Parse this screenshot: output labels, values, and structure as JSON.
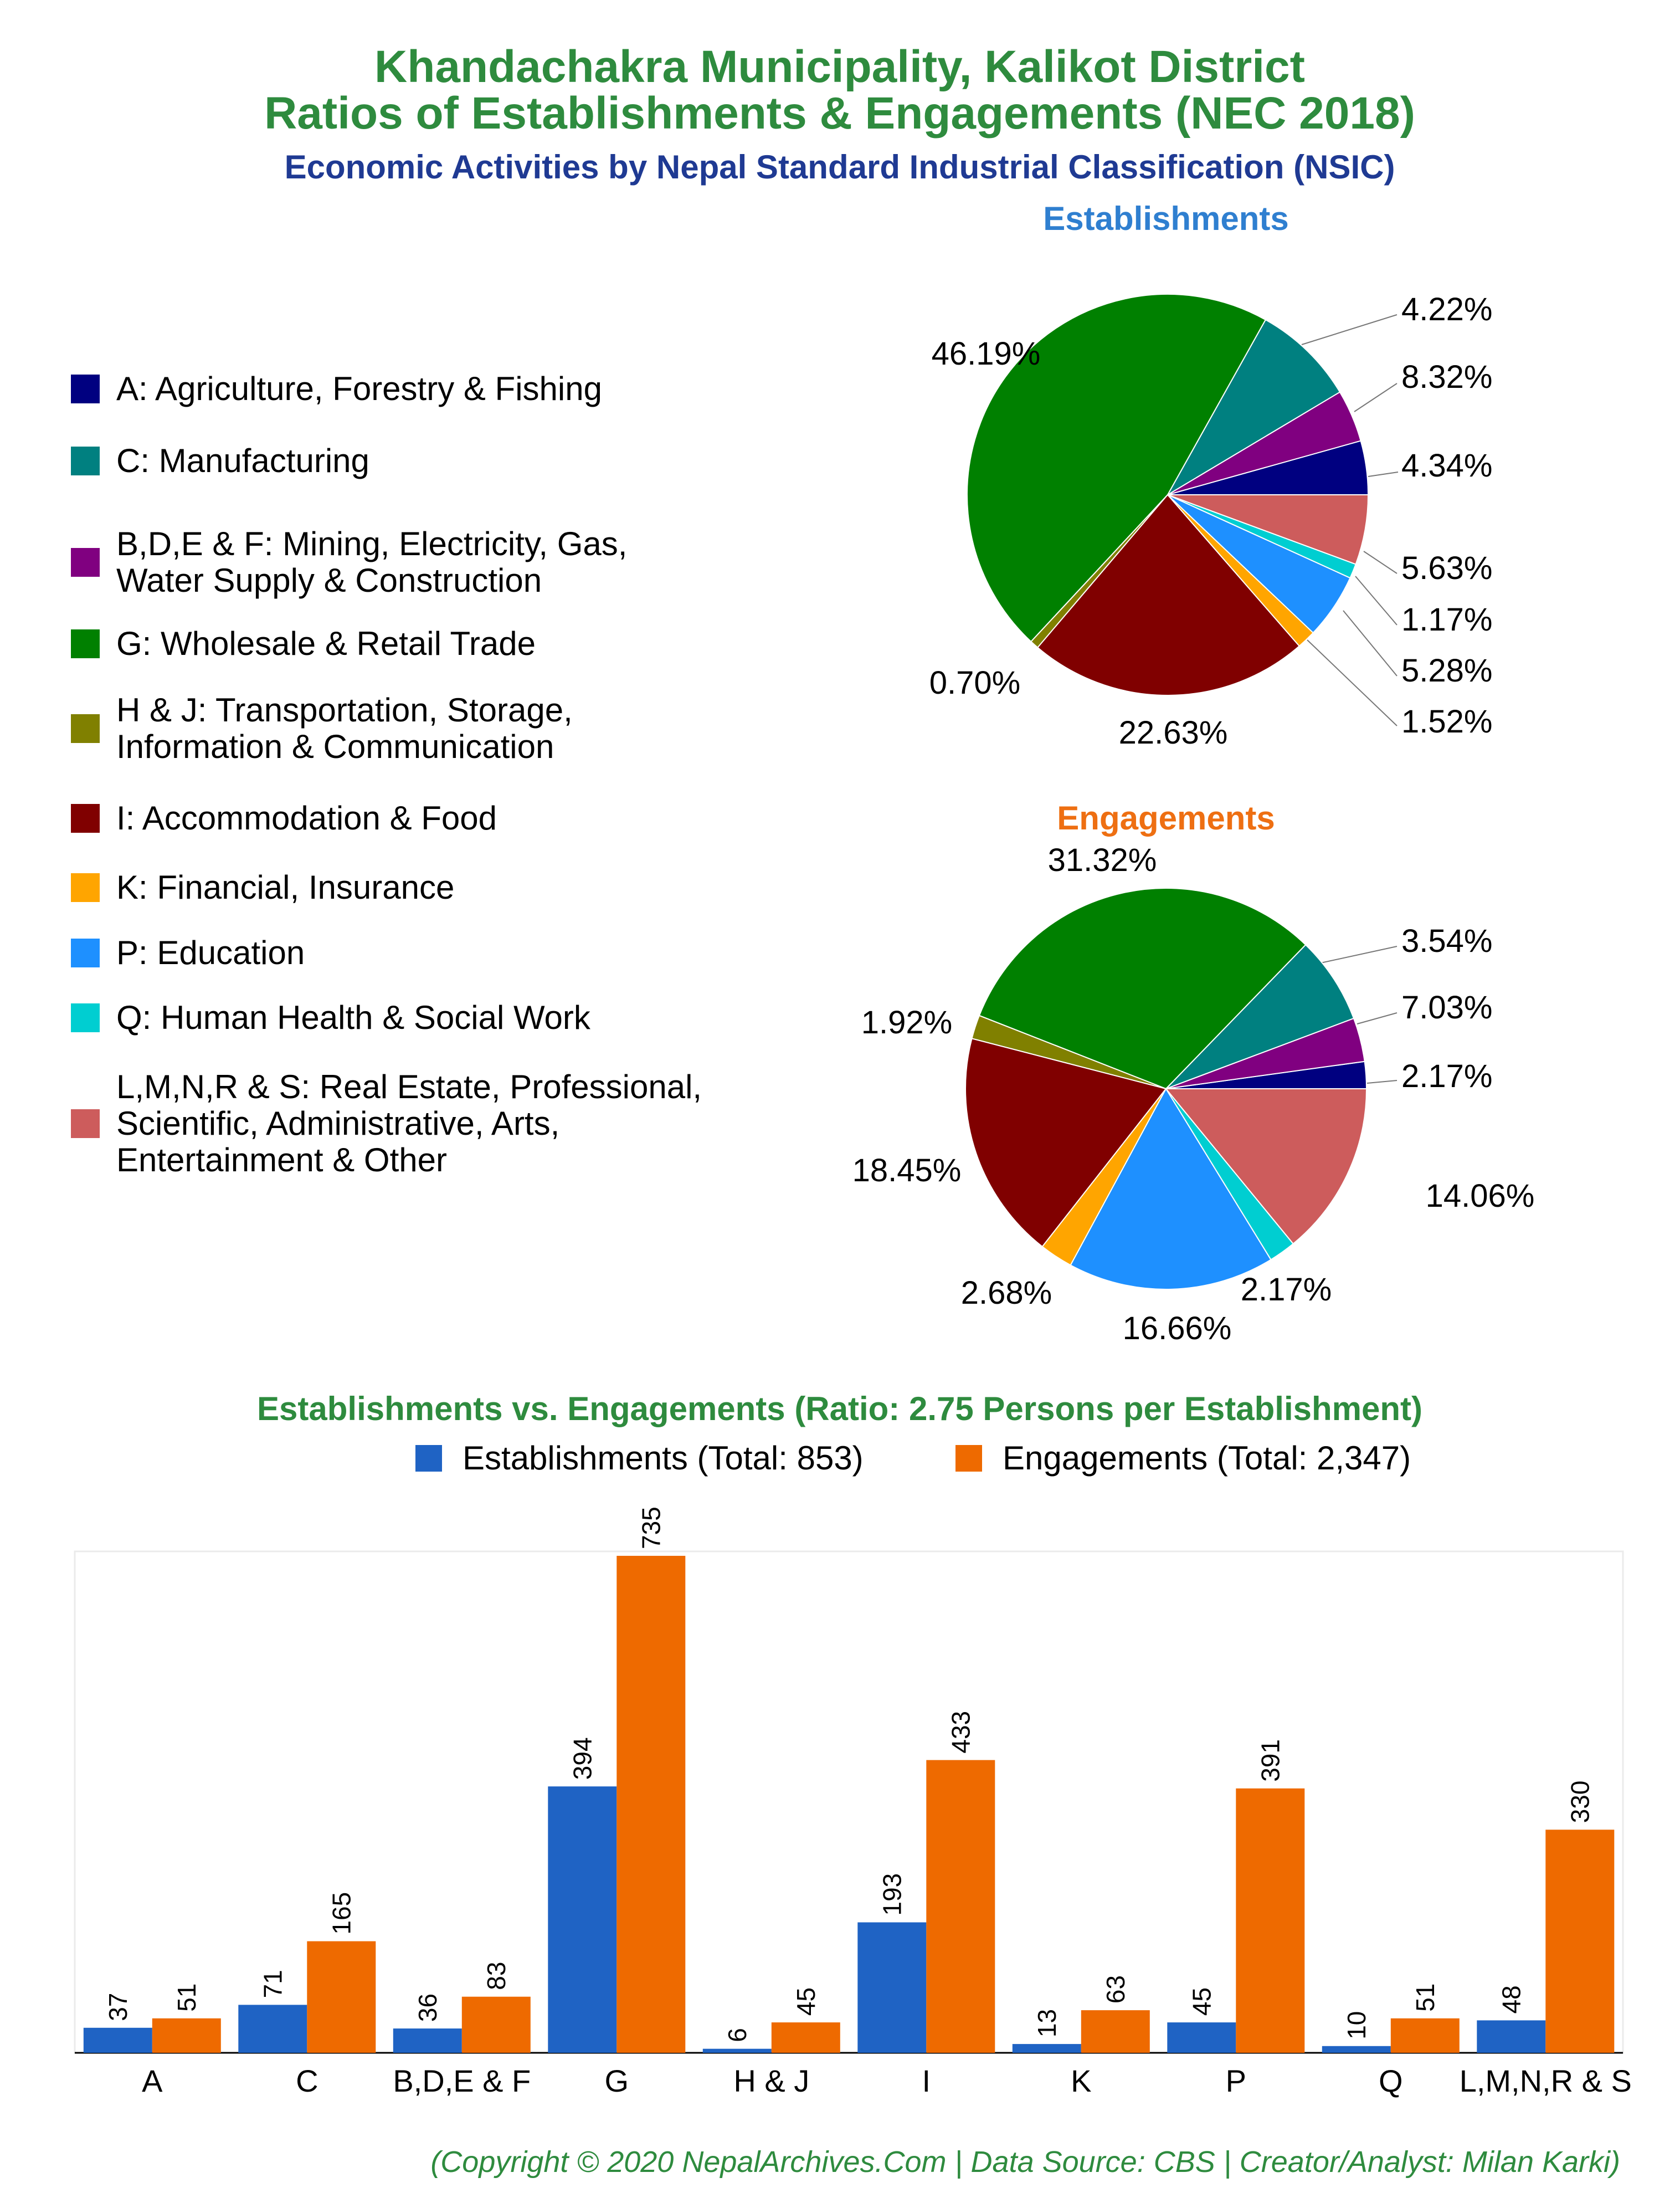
{
  "header": {
    "title_line1": "Khandachakra Municipality, Kalikot District",
    "title_line2": "Ratios of Establishments & Engagements (NEC 2018)",
    "subtitle": "Economic Activities by Nepal Standard Industrial Classification (NSIC)"
  },
  "colors": {
    "title_green": "#2e8b3e",
    "subtitle_blue": "#1f3a93",
    "establishments_title": "#2f7fd0",
    "engagements_title": "#ee6f12",
    "establishments_bar": "#1f63c4",
    "engagements_bar": "#ee6a00",
    "footer_green": "#2e8b3e"
  },
  "legend": {
    "items": [
      {
        "key": "A",
        "label_lines": [
          "A: Agriculture, Forestry & Fishing"
        ],
        "color": "#000080"
      },
      {
        "key": "C",
        "label_lines": [
          "C: Manufacturing"
        ],
        "color": "#008080"
      },
      {
        "key": "BDEF",
        "label_lines": [
          "B,D,E & F: Mining, Electricity, Gas,",
          "Water Supply & Construction"
        ],
        "color": "#800080"
      },
      {
        "key": "G",
        "label_lines": [
          "G: Wholesale & Retail Trade"
        ],
        "color": "#008000"
      },
      {
        "key": "HJ",
        "label_lines": [
          "H & J: Transportation, Storage,",
          "Information & Communication"
        ],
        "color": "#808000"
      },
      {
        "key": "I",
        "label_lines": [
          "I: Accommodation & Food"
        ],
        "color": "#800000"
      },
      {
        "key": "K",
        "label_lines": [
          "K: Financial, Insurance"
        ],
        "color": "#ffa500"
      },
      {
        "key": "P",
        "label_lines": [
          "P: Education"
        ],
        "color": "#1e90ff"
      },
      {
        "key": "Q",
        "label_lines": [
          "Q: Human Health & Social Work"
        ],
        "color": "#00ced1"
      },
      {
        "key": "LMNRS",
        "label_lines": [
          "L,M,N,R & S: Real Estate, Professional,",
          "Scientific, Administrative, Arts,",
          "Entertainment & Other"
        ],
        "color": "#cd5c5c"
      }
    ]
  },
  "chart_data": [
    {
      "type": "pie",
      "title": "Establishments",
      "slice_order": [
        "A",
        "BDEF",
        "C",
        "G",
        "HJ",
        "I",
        "K",
        "P",
        "Q",
        "LMNRS"
      ],
      "values": [
        37,
        36,
        71,
        394,
        6,
        193,
        13,
        45,
        10,
        48
      ],
      "labels": [
        "4.34%",
        "4.22%",
        "8.32%",
        "46.19%",
        "0.70%",
        "22.63%",
        "1.52%",
        "5.28%",
        "1.17%",
        "5.63%"
      ]
    },
    {
      "type": "pie",
      "title": "Engagements",
      "slice_order": [
        "A",
        "BDEF",
        "C",
        "G",
        "HJ",
        "I",
        "K",
        "P",
        "Q",
        "LMNRS"
      ],
      "values": [
        51,
        83,
        165,
        735,
        45,
        433,
        63,
        391,
        51,
        330
      ],
      "labels": [
        "2.17%",
        "3.54%",
        "7.03%",
        "31.32%",
        "1.92%",
        "18.45%",
        "2.68%",
        "16.66%",
        "2.17%",
        "14.06%"
      ]
    },
    {
      "type": "bar",
      "title": "Establishments vs. Engagements (Ratio: 2.75 Persons per Establishment)",
      "categories": [
        "A",
        "C",
        "B,D,E & F",
        "G",
        "H & J",
        "I",
        "K",
        "P",
        "Q",
        "L,M,N,R & S"
      ],
      "series": [
        {
          "name": "Establishments (Total: 853)",
          "values": [
            37,
            71,
            36,
            394,
            6,
            193,
            13,
            45,
            10,
            48
          ]
        },
        {
          "name": "Engagements (Total: 2,347)",
          "values": [
            51,
            165,
            83,
            735,
            45,
            433,
            63,
            391,
            51,
            330
          ]
        }
      ],
      "ylim": [
        0,
        735
      ],
      "grid": false,
      "legend_position": "top"
    }
  ],
  "footer": "(Copyright © 2020 NepalArchives.Com | Data Source: CBS | Creator/Analyst: Milan Karki)"
}
